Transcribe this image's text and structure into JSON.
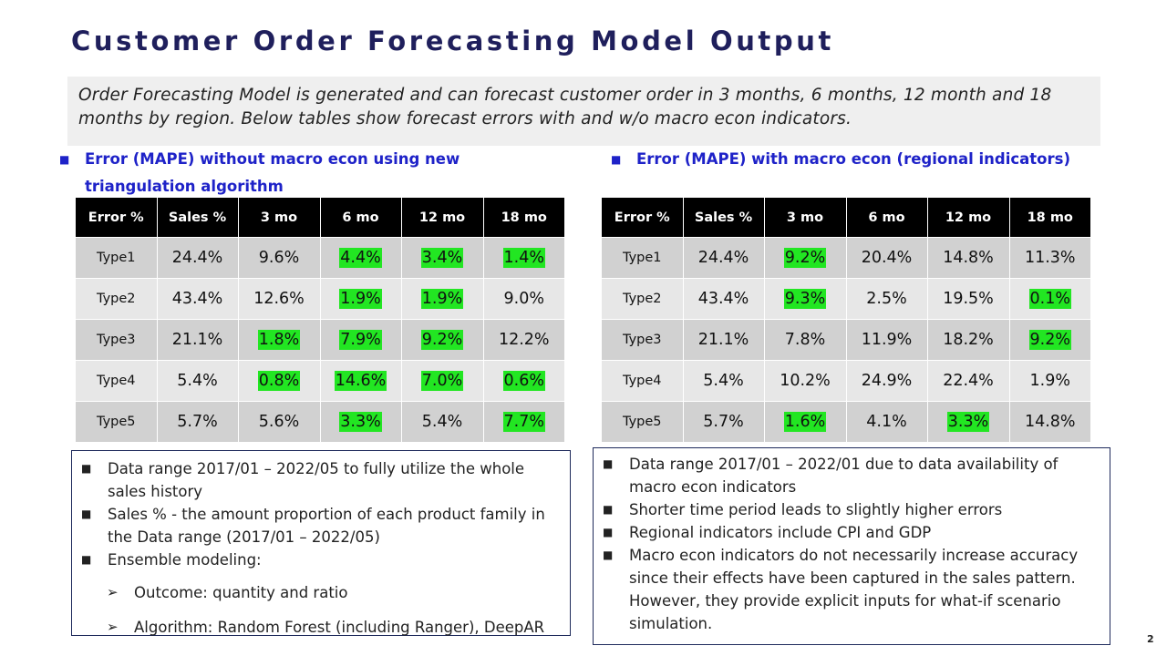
{
  "title": "Customer Order Forecasting Model Output",
  "intro": "Order Forecasting Model is generated and can forecast customer order in 3 months, 6 months, 12 month and 18 months by region. Below tables show forecast errors with and w/o macro econ indicators.",
  "left_heading": "Error (MAPE) without macro econ using new triangulation algorithm",
  "right_heading": "Error (MAPE) with macro econ (regional indicators)",
  "highlight_color": "#22e622",
  "tables": {
    "headers": [
      "Error %",
      "Sales %",
      "3 mo",
      "6 mo",
      "12 mo",
      "18 mo"
    ],
    "without_macro": [
      {
        "type": "Type1",
        "sales": "24.4%",
        "m3": "9.6%",
        "m6": "4.4%",
        "m12": "3.4%",
        "m18": "1.4%",
        "hl": [
          false,
          true,
          true,
          true
        ]
      },
      {
        "type": "Type2",
        "sales": "43.4%",
        "m3": "12.6%",
        "m6": "1.9%",
        "m12": "1.9%",
        "m18": "9.0%",
        "hl": [
          false,
          true,
          true,
          false
        ]
      },
      {
        "type": "Type3",
        "sales": "21.1%",
        "m3": "1.8%",
        "m6": "7.9%",
        "m12": "9.2%",
        "m18": "12.2%",
        "hl": [
          true,
          true,
          true,
          false
        ]
      },
      {
        "type": "Type4",
        "sales": "5.4%",
        "m3": "0.8%",
        "m6": "14.6%",
        "m12": "7.0%",
        "m18": "0.6%",
        "hl": [
          true,
          true,
          true,
          true
        ]
      },
      {
        "type": "Type5",
        "sales": "5.7%",
        "m3": "5.6%",
        "m6": "3.3%",
        "m12": "5.4%",
        "m18": "7.7%",
        "hl": [
          false,
          true,
          false,
          true
        ]
      }
    ],
    "with_macro": [
      {
        "type": "Type1",
        "sales": "24.4%",
        "m3": "9.2%",
        "m6": "20.4%",
        "m12": "14.8%",
        "m18": "11.3%",
        "hl": [
          true,
          false,
          false,
          false
        ]
      },
      {
        "type": "Type2",
        "sales": "43.4%",
        "m3": "9.3%",
        "m6": "2.5%",
        "m12": "19.5%",
        "m18": "0.1%",
        "hl": [
          true,
          false,
          false,
          true
        ]
      },
      {
        "type": "Type3",
        "sales": "21.1%",
        "m3": "7.8%",
        "m6": "11.9%",
        "m12": "18.2%",
        "m18": "9.2%",
        "hl": [
          false,
          false,
          false,
          true
        ]
      },
      {
        "type": "Type4",
        "sales": "5.4%",
        "m3": "10.2%",
        "m6": "24.9%",
        "m12": "22.4%",
        "m18": "1.9%",
        "hl": [
          false,
          false,
          false,
          false
        ]
      },
      {
        "type": "Type5",
        "sales": "5.7%",
        "m3": "1.6%",
        "m6": "4.1%",
        "m12": "3.3%",
        "m18": "14.8%",
        "hl": [
          true,
          false,
          true,
          false
        ]
      }
    ]
  },
  "left_notes": {
    "items": [
      "Data range 2017/01 – 2022/05 to fully utilize the whole sales history",
      "Sales % - the amount proportion of each product family in the Data range (2017/01 – 2022/05)",
      "Ensemble modeling:"
    ],
    "sub_items": [
      "Outcome: quantity and ratio",
      "Algorithm: Random Forest (including Ranger), DeepAR"
    ]
  },
  "right_notes": {
    "items": [
      "Data range 2017/01 – 2022/01 due to data availability of macro econ indicators",
      "Shorter time period leads to slightly higher errors",
      "Regional indicators include CPI and GDP",
      "Macro econ indicators do not necessarily increase accuracy since their effects have been captured in the sales pattern. However, they provide explicit inputs for what-if scenario simulation."
    ]
  },
  "page_number": "2"
}
